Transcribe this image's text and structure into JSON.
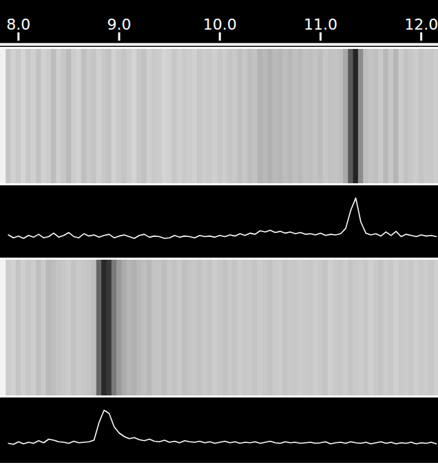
{
  "chart_data": [
    {
      "type": "line",
      "color": "#ffffff",
      "x": [
        7.9,
        7.95,
        8.0,
        8.05,
        8.1,
        8.15,
        8.2,
        8.25,
        8.3,
        8.35,
        8.4,
        8.45,
        8.5,
        8.55,
        8.6,
        8.65,
        8.7,
        8.75,
        8.8,
        8.85,
        8.9,
        8.95,
        9.0,
        9.05,
        9.1,
        9.15,
        9.2,
        9.25,
        9.3,
        9.35,
        9.4,
        9.45,
        9.5,
        9.55,
        9.6,
        9.65,
        9.7,
        9.75,
        9.8,
        9.85,
        9.9,
        9.95,
        10.0,
        10.05,
        10.1,
        10.15,
        10.2,
        10.25,
        10.3,
        10.35,
        10.4,
        10.45,
        10.5,
        10.55,
        10.6,
        10.65,
        10.7,
        10.75,
        10.8,
        10.85,
        10.9,
        10.95,
        11.0,
        11.05,
        11.1,
        11.15,
        11.2,
        11.25,
        11.3,
        11.35,
        11.4,
        11.45,
        11.5,
        11.55,
        11.6,
        11.65,
        11.7,
        11.75,
        11.8,
        11.85,
        11.9,
        11.95,
        12.0,
        12.05,
        12.1,
        12.15
      ],
      "values": [
        2.3,
        1.8,
        2.1,
        1.7,
        2.2,
        1.9,
        2.4,
        1.8,
        2.0,
        2.6,
        1.9,
        2.2,
        2.7,
        2.0,
        1.8,
        2.5,
        2.1,
        2.3,
        1.9,
        2.2,
        2.4,
        1.8,
        2.1,
        2.3,
        2.0,
        1.7,
        2.2,
        2.4,
        1.9,
        2.1,
        2.0,
        1.7,
        1.8,
        2.2,
        1.9,
        2.1,
        2.0,
        1.8,
        2.2,
        2.0,
        2.1,
        1.9,
        2.2,
        2.0,
        2.3,
        2.1,
        2.5,
        2.2,
        2.6,
        2.4,
        3.0,
        2.8,
        3.1,
        2.7,
        2.9,
        2.6,
        2.8,
        2.5,
        2.7,
        2.4,
        2.5,
        2.3,
        2.6,
        2.2,
        2.4,
        2.3,
        2.5,
        3.4,
        6.5,
        8.6,
        4.5,
        2.6,
        2.3,
        2.5,
        2.1,
        2.8,
        2.2,
        2.9,
        2.0,
        2.4,
        2.2,
        2.0,
        2.3,
        2.1,
        2.2,
        2.0
      ],
      "xlim": [
        7.82,
        12.17
      ],
      "xticks": [
        8,
        9,
        10,
        11,
        12
      ],
      "ylim": [
        0,
        10
      ],
      "tick_labels": "x"
    },
    {
      "type": "line",
      "color": "#ffffff",
      "x": [
        7.9,
        7.95,
        8.0,
        8.05,
        8.1,
        8.15,
        8.2,
        8.25,
        8.3,
        8.35,
        8.4,
        8.45,
        8.5,
        8.55,
        8.6,
        8.65,
        8.7,
        8.75,
        8.8,
        8.85,
        8.9,
        8.95,
        9.0,
        9.05,
        9.1,
        9.15,
        9.2,
        9.25,
        9.3,
        9.35,
        9.4,
        9.45,
        9.5,
        9.55,
        9.6,
        9.65,
        9.7,
        9.75,
        9.8,
        9.85,
        9.9,
        9.95,
        10.0,
        10.05,
        10.1,
        10.15,
        10.2,
        10.25,
        10.3,
        10.35,
        10.4,
        10.45,
        10.5,
        10.55,
        10.6,
        10.65,
        10.7,
        10.75,
        10.8,
        10.85,
        10.9,
        10.95,
        11.0,
        11.05,
        11.1,
        11.15,
        11.2,
        11.25,
        11.3,
        11.35,
        11.4,
        11.45,
        11.5,
        11.55,
        11.6,
        11.65,
        11.7,
        11.75,
        11.8,
        11.85,
        11.9,
        11.95,
        12.0,
        12.05,
        12.1,
        12.15
      ],
      "values": [
        2.0,
        1.8,
        2.3,
        1.9,
        2.2,
        2.0,
        2.5,
        2.1,
        2.8,
        2.6,
        2.3,
        2.2,
        2.0,
        2.4,
        2.1,
        2.2,
        2.3,
        2.6,
        6.0,
        8.4,
        7.8,
        5.2,
        4.0,
        3.3,
        2.9,
        3.1,
        2.7,
        2.5,
        2.8,
        2.4,
        2.3,
        2.6,
        2.2,
        2.4,
        2.1,
        2.5,
        2.3,
        2.2,
        2.4,
        2.1,
        2.3,
        2.0,
        2.2,
        2.4,
        2.1,
        2.3,
        2.0,
        2.2,
        2.1,
        2.3,
        2.0,
        2.2,
        2.4,
        2.1,
        2.0,
        2.3,
        2.1,
        2.2,
        2.0,
        2.1,
        2.2,
        2.0,
        2.1,
        2.3,
        1.9,
        2.1,
        2.2,
        2.0,
        2.3,
        2.1,
        2.0,
        2.2,
        1.9,
        2.1,
        2.3,
        2.0,
        2.2,
        1.9,
        2.1,
        2.0,
        2.2,
        1.9,
        2.1,
        2.0,
        2.2,
        1.9
      ],
      "xlim": [
        7.82,
        12.17
      ],
      "ylim": [
        0,
        10
      ],
      "tick_labels": false
    }
  ]
}
